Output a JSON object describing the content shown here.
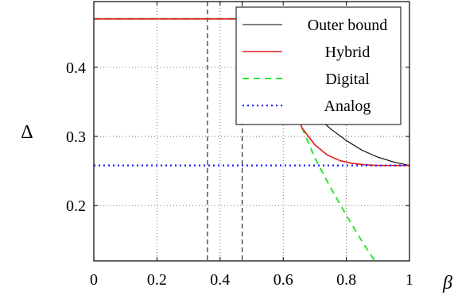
{
  "chart_data": {
    "type": "line",
    "title": "",
    "xlabel": "β",
    "ylabel": "Δ",
    "xlim": [
      0,
      1
    ],
    "ylim": [
      0.12,
      0.495
    ],
    "xticks": [
      0,
      0.2,
      0.4,
      0.6,
      0.8,
      1
    ],
    "xtick_labels": [
      "0",
      "0.2",
      "0.4",
      "0.6",
      "0.8",
      "1"
    ],
    "yticks": [
      0.2,
      0.3,
      0.4
    ],
    "ytick_labels": [
      "0.2",
      "0.3",
      "0.4"
    ],
    "grid": true,
    "legend_position": "top-right",
    "vertical_markers": [
      0.36,
      0.47
    ],
    "series": [
      {
        "name": "Outer bound",
        "color": "#000000",
        "style": "solid",
        "x": [
          0,
          0.5,
          0.55,
          0.6,
          0.65,
          0.7,
          0.75,
          0.8,
          0.85,
          0.9,
          0.95,
          1.0
        ],
        "y": [
          0.47,
          0.47,
          0.423,
          0.385,
          0.355,
          0.331,
          0.311,
          0.294,
          0.28,
          0.27,
          0.263,
          0.258
        ]
      },
      {
        "name": "Hybrid",
        "color": "#e31a1c",
        "style": "solid",
        "x": [
          0,
          0.5,
          0.55,
          0.6,
          0.63,
          0.66,
          0.7,
          0.74,
          0.78,
          0.82,
          0.86,
          0.9,
          0.95,
          1.0
        ],
        "y": [
          0.47,
          0.47,
          0.423,
          0.385,
          0.345,
          0.312,
          0.288,
          0.273,
          0.265,
          0.261,
          0.259,
          0.258,
          0.258,
          0.258
        ]
      },
      {
        "name": "Digital",
        "color": "#2ee52e",
        "style": "dashed",
        "x": [
          0,
          0.5,
          0.55,
          0.6,
          0.65,
          0.7,
          0.75,
          0.8,
          0.85,
          0.89
        ],
        "y": [
          0.47,
          0.47,
          0.423,
          0.385,
          0.323,
          0.269,
          0.226,
          0.186,
          0.148,
          0.12
        ]
      },
      {
        "name": "Analog",
        "color": "#1a1aff",
        "style": "dotted",
        "x": [
          0,
          1
        ],
        "y": [
          0.258,
          0.258
        ]
      }
    ]
  }
}
